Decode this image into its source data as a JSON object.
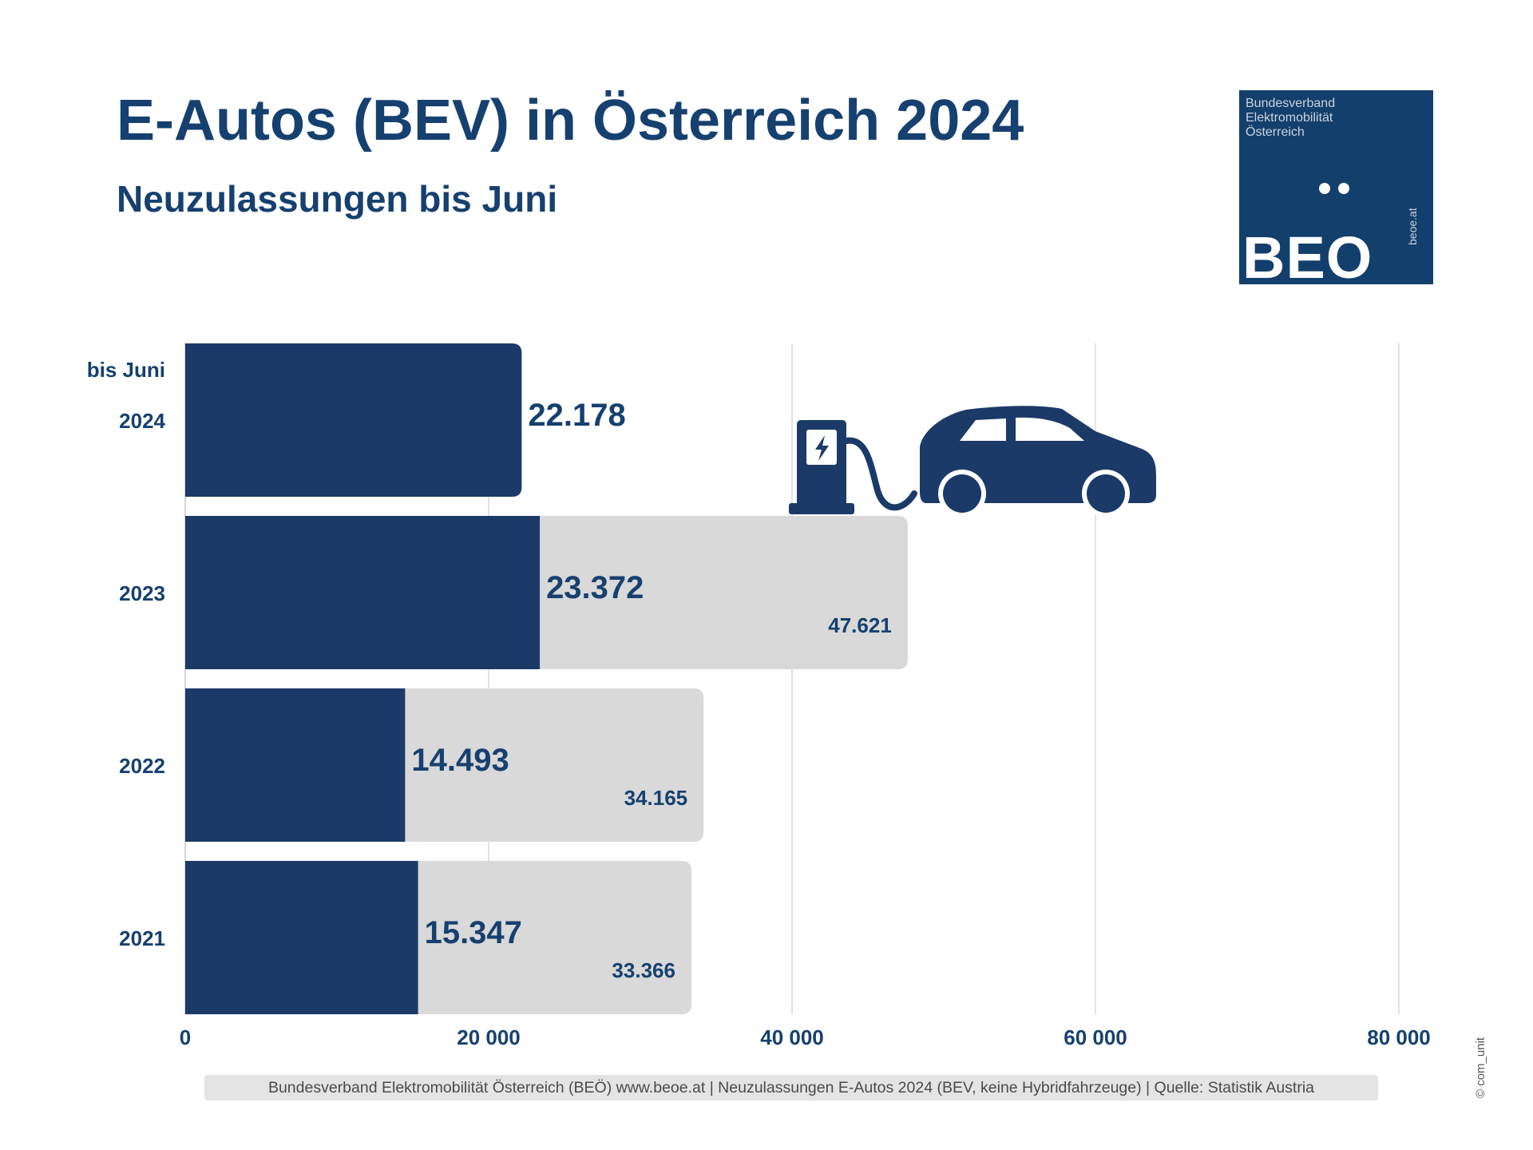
{
  "header": {
    "title": "E-Autos (BEV) in Österreich 2024",
    "subtitle_bold": "Neuzulassungen",
    "subtitle_rest": " bis Juni"
  },
  "logo": {
    "line1": "Bundesverband",
    "line2": "Elektromobilität",
    "line3": "Österreich",
    "mark": "BEO",
    "url": "beoe.at"
  },
  "footer": {
    "text": "Bundesverband Elektromobilität Österreich (BEÖ) www.beoe.at | Neuzulassungen E-Autos 2024 (BEV, keine Hybridfahrzeuge) | Quelle: Statistik Austria",
    "copyright": "© com_unit"
  },
  "colors": {
    "primary": "#1b3a68",
    "secondary": "#d9d9d9",
    "text": "#16406f",
    "grid": "#d5d9e0"
  },
  "chart_data": {
    "type": "bar",
    "orientation": "horizontal",
    "categories": [
      "2024",
      "2023",
      "2022",
      "2021"
    ],
    "category_prefix_2024": "bis Juni",
    "series": [
      {
        "values": [
          22178,
          23372,
          14493,
          15347
        ],
        "labels": [
          "22.178",
          "23.372",
          "14.493",
          "15.347"
        ],
        "color": "#1b3a68"
      },
      {
        "values": [
          null,
          47621,
          34165,
          33366
        ],
        "labels": [
          null,
          "47.621",
          "34.165",
          "33.366"
        ],
        "color": "#d9d9d9"
      }
    ],
    "xlim": [
      0,
      80000
    ],
    "xticks": [
      0,
      20000,
      40000,
      60000,
      80000
    ],
    "xtick_labels": [
      "0",
      "20 000",
      "40 000",
      "60 000",
      "80 000"
    ],
    "grid": true,
    "icon": "ev-charging-car-icon"
  }
}
